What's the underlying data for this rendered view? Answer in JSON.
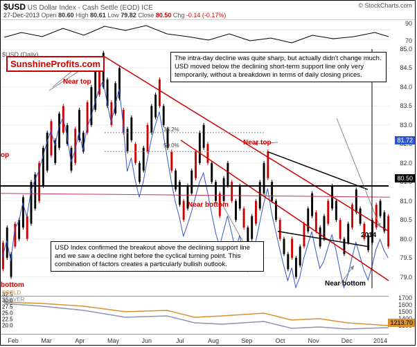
{
  "header": {
    "ticker": "$USD",
    "description": "US Dollar Index - Cash Settle (EOD) ICE",
    "date": "27-Dec-2013",
    "open_label": "Open",
    "open": "80.60",
    "high_label": "High",
    "high": "80.61",
    "low_label": "Low",
    "low": "79.82",
    "close_label": "Close",
    "close": "80.50",
    "chg_label": "Chg",
    "chg": "-0.14 (-0.17%)",
    "source": "© StockCharts.com"
  },
  "watermark": "SunshineProfits.com",
  "annotations": {
    "top_box": "The intra-day decline was quite sharp, but actually didn't change much. USD moved below the declining short-term support line only very temporarily, without a breakdown in terms of daily closing prices.",
    "bottom_box": "USD Index confirmed the breakout above the declining support line and we saw a decline right before the cyclical turning point. This combination of factors creates a particularly bullish outlook.",
    "near_top": "Near top",
    "near_bottom": "Near bottom",
    "op": "op",
    "bottom": "bottom"
  },
  "chart": {
    "type": "candlestick",
    "top_indicator_label": "$USD (Daily)",
    "price_tag_main": "80.50",
    "price_tag_blue": "81.72",
    "price_tag_gold": "1213.70",
    "fib_382": "38.2%",
    "fib_500": "50.0%",
    "hline_price": 80.5,
    "colors": {
      "bg": "#ffffff",
      "grid": "#e0e0e0",
      "candle_up": "#000000",
      "candle_down": "#c00000",
      "ma_blue": "#3355cc",
      "ma_red": "#cc3355",
      "trend_red": "#cc0000",
      "trend_black": "#000000",
      "gold": "#d89030",
      "silver": "#9090b0",
      "arrow": "#888888"
    },
    "y_main": {
      "min": 78.7,
      "max": 85.0,
      "ticks": [
        79.0,
        79.5,
        80.0,
        80.5,
        81.0,
        81.5,
        82.0,
        82.5,
        83.0,
        83.5,
        84.0,
        84.5,
        85.0
      ]
    },
    "y_top": {
      "min": 60,
      "max": 90,
      "ticks": [
        70,
        90
      ]
    },
    "y_bottom_left": {
      "ticks": [
        20.0,
        22.5,
        25.0,
        27.5,
        30.0,
        32.5
      ]
    },
    "y_bottom_right": {
      "ticks": [
        1300,
        1400,
        1500,
        1600,
        1700
      ]
    },
    "x_labels": [
      "Feb",
      "Mar",
      "Apr",
      "May",
      "Jun",
      "Jul",
      "Aug",
      "Sep",
      "Oct",
      "Nov",
      "Dec",
      "2014"
    ],
    "year_marker": "2014",
    "legend_bottom": {
      "gold": "$GOLD",
      "silver": "$SILVER"
    }
  }
}
